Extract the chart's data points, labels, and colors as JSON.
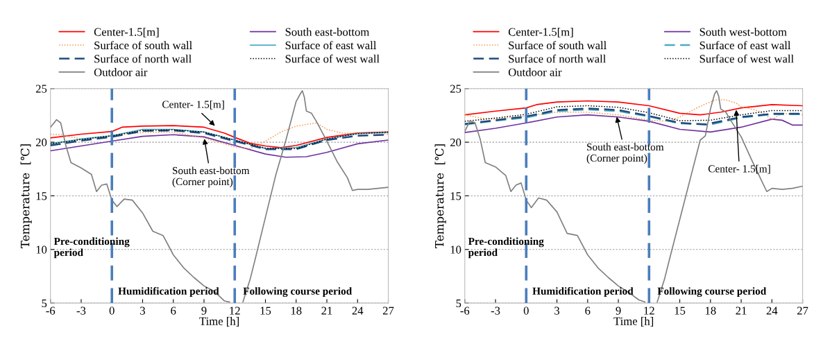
{
  "chart_data": [
    {
      "type": "line",
      "xlabel": "Time [h]",
      "ylabel": "Temperature  [℃]",
      "xlim": [
        -6,
        27
      ],
      "ylim": [
        5,
        25
      ],
      "xticks": [
        -6,
        -3,
        0,
        3,
        6,
        9,
        12,
        15,
        18,
        21,
        24,
        27
      ],
      "yticks": [
        5,
        10,
        15,
        20,
        25
      ],
      "grid": "y",
      "legend": "top",
      "marker": "none",
      "ref_lines": [
        {
          "axis": "x",
          "value": 0,
          "color": "#4a7ebb",
          "line_style": "dashed"
        },
        {
          "axis": "x",
          "value": 12,
          "color": "#4a7ebb",
          "line_style": "dashed"
        }
      ],
      "annotations": [
        {
          "text": "Center- 1.5[m]",
          "x": 10.2,
          "y": 21.4
        },
        {
          "text": "South east-bottom\n(Corner point)",
          "x": 9,
          "y": 20.5
        },
        "Pre-conditioning\nperiod",
        "Humidification period",
        "Following course period"
      ],
      "series": [
        {
          "name": "Center-1.5[m]",
          "color": "#ff0000",
          "line_style": "solid",
          "x": [
            -6,
            -3,
            0,
            1,
            3,
            6,
            9,
            11,
            12,
            13.5,
            15,
            16.5,
            18,
            21,
            24,
            27
          ],
          "values": [
            20.4,
            20.75,
            21.0,
            21.4,
            21.5,
            21.55,
            21.4,
            20.85,
            20.45,
            19.9,
            19.65,
            19.5,
            19.7,
            20.45,
            20.85,
            20.95
          ]
        },
        {
          "name": "South east-bottom",
          "color": "#7030a0",
          "line_style": "solid",
          "x": [
            -6,
            -3,
            0,
            3,
            6,
            9,
            12,
            15,
            17,
            19,
            21,
            24,
            27
          ],
          "values": [
            19.2,
            19.65,
            20.1,
            20.55,
            20.7,
            20.5,
            19.7,
            18.9,
            18.6,
            18.65,
            19.05,
            19.85,
            20.2
          ]
        },
        {
          "name": "Surface of south wall",
          "color": "#f79646",
          "line_style": "dotted",
          "x": [
            -6,
            -5,
            -3,
            0,
            3,
            6,
            9,
            11,
            12,
            13.5,
            15,
            16.5,
            18,
            20,
            21,
            22.5,
            24,
            27
          ],
          "values": [
            20.75,
            20.7,
            20.3,
            20.65,
            20.9,
            20.95,
            20.4,
            19.85,
            19.55,
            19.4,
            20.1,
            20.95,
            21.5,
            21.8,
            21.2,
            20.85,
            20.85,
            20.75
          ]
        },
        {
          "name": "Surface of east wall",
          "color": "#4bacc6",
          "line_style": "solid",
          "x": [
            -6,
            -3,
            0,
            3,
            6,
            9,
            12,
            15,
            18,
            21,
            24,
            27
          ],
          "values": [
            19.85,
            20.3,
            20.6,
            21.2,
            21.2,
            20.95,
            20.2,
            19.4,
            19.5,
            20.3,
            20.8,
            20.9
          ]
        },
        {
          "name": "Surface of north wall",
          "color": "#1f497d",
          "line_style": "dashed",
          "x": [
            -6,
            -3,
            0,
            3,
            6,
            9,
            12,
            15,
            18,
            21,
            24,
            27
          ],
          "values": [
            19.7,
            20.15,
            20.5,
            21.05,
            21.1,
            20.85,
            20.1,
            19.35,
            19.35,
            20.2,
            20.6,
            20.7
          ]
        },
        {
          "name": "Surface of west wall",
          "color": "#000000",
          "line_style": "dotted",
          "x": [
            -6,
            -3,
            0,
            3,
            6,
            9,
            12,
            15,
            18,
            21,
            24,
            27
          ],
          "values": [
            19.85,
            20.25,
            20.6,
            21.1,
            21.15,
            20.95,
            20.2,
            19.45,
            19.4,
            20.3,
            20.8,
            20.95
          ]
        },
        {
          "name": "Outdoor air",
          "color": "#808080",
          "line_style": "solid",
          "x": [
            -6,
            -5.4,
            -5,
            -4.5,
            -4,
            -3,
            -2,
            -1.5,
            -1,
            -0.5,
            0,
            0.5,
            1.2,
            2,
            3,
            4,
            5,
            6,
            7,
            8,
            9,
            10,
            11,
            11.5,
            12.2,
            12.8,
            13.5,
            14,
            15,
            16,
            17,
            17.5,
            18,
            18.4,
            18.6,
            18.8,
            19,
            19.5,
            20,
            21,
            22,
            23,
            23.5,
            24,
            25,
            26,
            27
          ],
          "values": [
            21.4,
            22.1,
            21.8,
            19.7,
            18.1,
            17.6,
            17.0,
            15.4,
            16.0,
            16.1,
            14.6,
            14.0,
            14.7,
            14.6,
            13.4,
            11.7,
            11.3,
            9.5,
            8.3,
            7.4,
            6.6,
            6.1,
            5.2,
            5.1,
            null,
            5.1,
            7.2,
            9.1,
            13.0,
            16.9,
            20.2,
            22.0,
            23.8,
            24.5,
            24.8,
            24.2,
            22.9,
            22.7,
            21.9,
            20.1,
            18.2,
            16.7,
            15.5,
            15.6,
            15.6,
            15.7,
            15.8
          ]
        }
      ]
    },
    {
      "type": "line",
      "xlabel": "Time [h]",
      "ylabel": "Temperature  [℃]",
      "xlim": [
        -6,
        27
      ],
      "ylim": [
        5,
        25
      ],
      "xticks": [
        -6,
        -3,
        0,
        3,
        6,
        9,
        12,
        15,
        18,
        21,
        24,
        27
      ],
      "yticks": [
        5,
        10,
        15,
        20,
        25
      ],
      "grid": "y",
      "legend": "top",
      "marker": "none",
      "ref_lines": [
        {
          "axis": "x",
          "value": 0,
          "color": "#4a7ebb",
          "line_style": "dashed"
        },
        {
          "axis": "x",
          "value": 12,
          "color": "#4a7ebb",
          "line_style": "dashed"
        }
      ],
      "annotations": [
        {
          "text": "South east-bottom\n(Corner point)",
          "x": 8.8,
          "y": 22.55
        },
        {
          "text": "Center- 1.5[m]",
          "x": 20.5,
          "y": 23.2
        },
        "Pre-conditioning\nperiod",
        "Humidification period",
        "Following course period"
      ],
      "series": [
        {
          "name": "Center-1.5[m]",
          "color": "#ff0000",
          "line_style": "solid",
          "x": [
            -6,
            -3,
            0,
            1,
            3,
            6,
            9,
            12,
            15,
            17,
            19,
            21,
            24,
            27
          ],
          "values": [
            22.55,
            22.9,
            23.2,
            23.5,
            23.75,
            23.85,
            23.75,
            23.4,
            22.7,
            22.55,
            22.8,
            23.2,
            23.5,
            23.4
          ]
        },
        {
          "name": "South west-bottom",
          "color": "#7030a0",
          "line_style": "solid",
          "x": [
            -6,
            -3,
            0,
            3,
            6,
            9,
            12,
            15,
            18,
            21,
            24,
            25,
            26,
            27
          ],
          "values": [
            20.9,
            21.3,
            21.8,
            22.35,
            22.55,
            22.35,
            21.95,
            21.2,
            20.95,
            21.4,
            22.15,
            22.05,
            21.6,
            21.6
          ]
        },
        {
          "name": "Surface of south wall",
          "color": "#f79646",
          "line_style": "dotted",
          "x": [
            -6,
            -4.5,
            -3,
            0,
            3,
            6,
            9,
            12,
            14,
            15,
            17,
            18.5,
            19.5,
            20.5,
            21,
            22,
            23,
            24,
            25,
            27
          ],
          "values": [
            22.55,
            22.25,
            22.15,
            22.45,
            22.8,
            22.8,
            22.55,
            22.05,
            21.95,
            22.35,
            23.35,
            23.95,
            23.95,
            23.65,
            23.3,
            23.1,
            22.8,
            22.1,
            22.7,
            22.55
          ]
        },
        {
          "name": "Surface of east wall",
          "color": "#4bacc6",
          "line_style": "dashed",
          "x": [
            -6,
            -3,
            0,
            3,
            6,
            9,
            12,
            15,
            18,
            21,
            24,
            27
          ],
          "values": [
            21.65,
            22.0,
            22.3,
            22.9,
            23.05,
            22.9,
            22.4,
            21.75,
            21.65,
            22.3,
            22.6,
            22.6
          ]
        },
        {
          "name": "Surface of north wall",
          "color": "#1f497d",
          "line_style": "dashed",
          "x": [
            -6,
            -3,
            0,
            3,
            6,
            9,
            12,
            15,
            17.5,
            21,
            24,
            27
          ],
          "values": [
            21.7,
            22.05,
            22.4,
            23.0,
            23.15,
            23.0,
            22.45,
            21.8,
            21.65,
            22.35,
            22.65,
            22.65
          ]
        },
        {
          "name": "Surface of west wall",
          "color": "#000000",
          "line_style": "dotted",
          "x": [
            -6,
            -3,
            0,
            3,
            6,
            9,
            12,
            15,
            18,
            21,
            24,
            27
          ],
          "values": [
            21.95,
            22.25,
            22.6,
            23.3,
            23.4,
            23.25,
            22.75,
            22.0,
            22.05,
            22.55,
            22.95,
            22.95
          ]
        },
        {
          "name": "Outdoor air",
          "color": "#808080",
          "line_style": "solid",
          "x": [
            -6,
            -5.5,
            -5,
            -4.5,
            -4,
            -3,
            -2,
            -1.5,
            -1,
            -0.5,
            0,
            0.5,
            1.2,
            2,
            3,
            4,
            5,
            6,
            7,
            8,
            9,
            10,
            11,
            11.6,
            12.2,
            12.8,
            13.5,
            14,
            15,
            16,
            17,
            17.5,
            18,
            18.4,
            18.6,
            18.8,
            19,
            19.5,
            20,
            21,
            22,
            23,
            23.5,
            24,
            25,
            26,
            27
          ],
          "values": [
            21.0,
            22.0,
            21.8,
            20.3,
            18.1,
            17.7,
            16.9,
            15.4,
            16.0,
            16.2,
            14.6,
            13.9,
            14.8,
            14.6,
            13.5,
            11.5,
            11.3,
            9.5,
            8.3,
            7.4,
            6.6,
            6.0,
            5.3,
            5.1,
            null,
            5.1,
            7.2,
            9.1,
            12.8,
            16.5,
            20.2,
            20.6,
            23.1,
            24.5,
            24.8,
            24.3,
            23.1,
            22.8,
            22.0,
            20.5,
            18.4,
            16.4,
            15.4,
            15.7,
            15.6,
            15.7,
            15.9
          ]
        }
      ]
    }
  ]
}
